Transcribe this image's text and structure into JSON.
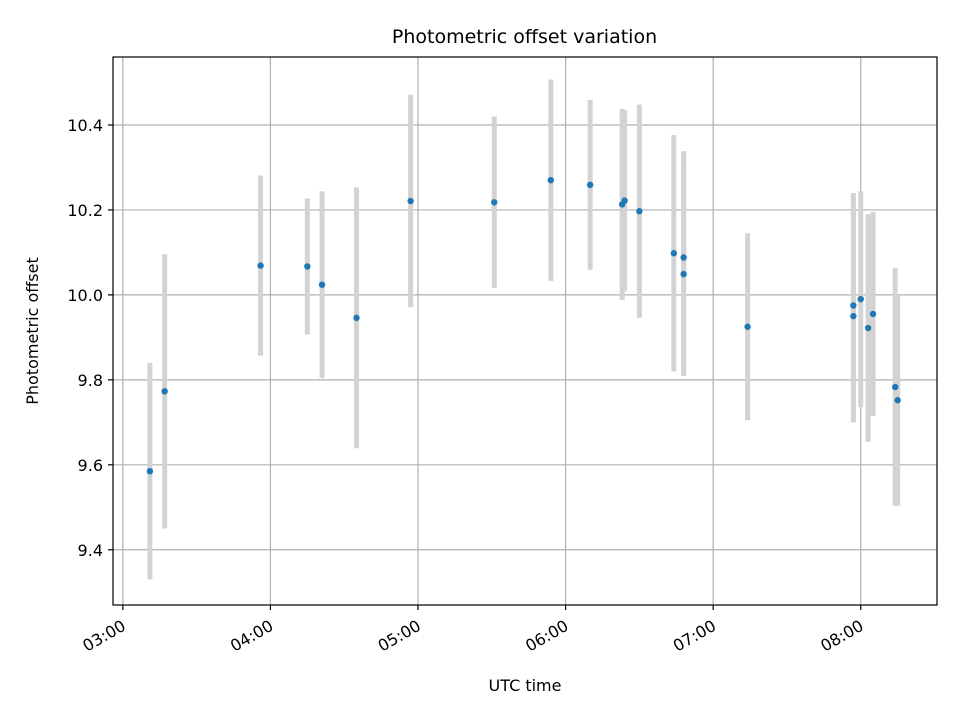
{
  "chart_data": {
    "type": "scatter",
    "title": "Photometric offset variation",
    "xlabel": "UTC time",
    "ylabel": "Photometric offset",
    "x_tick_labels": [
      "03:00",
      "04:00",
      "05:00",
      "06:00",
      "07:00",
      "08:00"
    ],
    "y_tick_labels": [
      "9.4",
      "9.6",
      "9.8",
      "10.0",
      "10.2",
      "10.4"
    ],
    "xlim": [
      "02:56",
      "08:31"
    ],
    "ylim": [
      9.27,
      10.56
    ],
    "grid": true,
    "colors": {
      "point": "#1f77b4",
      "errorbar": "#d3d3d3",
      "grid": "#b0b0b0"
    },
    "points": [
      {
        "time": "03:11",
        "y": 9.585,
        "err": 0.255
      },
      {
        "time": "03:17",
        "y": 9.773,
        "err": 0.323
      },
      {
        "time": "03:56",
        "y": 10.069,
        "err": 0.212
      },
      {
        "time": "04:15",
        "y": 10.067,
        "err": 0.16
      },
      {
        "time": "04:21",
        "y": 10.024,
        "err": 0.22
      },
      {
        "time": "04:35",
        "y": 9.946,
        "err": 0.307
      },
      {
        "time": "04:57",
        "y": 10.221,
        "err": 0.25
      },
      {
        "time": "05:31",
        "y": 10.218,
        "err": 0.202
      },
      {
        "time": "05:54",
        "y": 10.27,
        "err": 0.237
      },
      {
        "time": "06:10",
        "y": 10.259,
        "err": 0.2
      },
      {
        "time": "06:23",
        "y": 10.213,
        "err": 0.225
      },
      {
        "time": "06:24",
        "y": 10.222,
        "err": 0.213
      },
      {
        "time": "06:30",
        "y": 10.197,
        "err": 0.251
      },
      {
        "time": "06:44",
        "y": 10.098,
        "err": 0.278
      },
      {
        "time": "06:48",
        "y": 10.088,
        "err": 0.25
      },
      {
        "time": "06:48",
        "y": 10.049,
        "err": 0.24
      },
      {
        "time": "07:14",
        "y": 9.925,
        "err": 0.22
      },
      {
        "time": "07:57",
        "y": 9.95,
        "err": 0.25
      },
      {
        "time": "07:57",
        "y": 9.975,
        "err": 0.265
      },
      {
        "time": "08:00",
        "y": 9.99,
        "err": 0.254
      },
      {
        "time": "08:03",
        "y": 9.922,
        "err": 0.268
      },
      {
        "time": "08:05",
        "y": 9.955,
        "err": 0.24
      },
      {
        "time": "08:14",
        "y": 9.783,
        "err": 0.28
      },
      {
        "time": "08:15",
        "y": 9.752,
        "err": 0.248
      }
    ]
  }
}
